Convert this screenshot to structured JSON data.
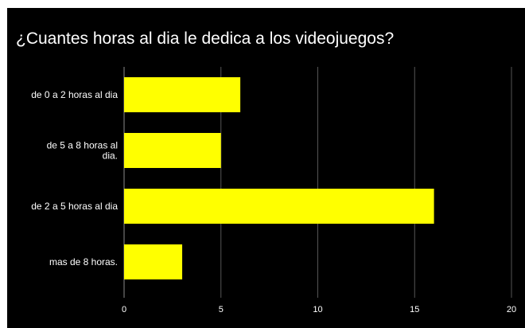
{
  "chart_data": {
    "type": "bar",
    "orientation": "horizontal",
    "title": "¿Cuantes horas al dia le dedica a los videojuegos?",
    "categories": [
      [
        "de 0 a 2 horas al dia"
      ],
      [
        "de 5 a 8 horas al",
        "dia."
      ],
      [
        "de 2 a 5 horas al dia"
      ],
      [
        "mas de 8 horas."
      ]
    ],
    "values": [
      6,
      5,
      16,
      3
    ],
    "xlim": [
      0,
      20
    ],
    "xticks": [
      0,
      5,
      10,
      15,
      20
    ],
    "xlabel": "",
    "ylabel": "",
    "grid": true,
    "legend": "none",
    "colors": {
      "background": "#000000",
      "bar": "#ffff00",
      "text": "#ffffff",
      "grid": "#555555"
    }
  }
}
